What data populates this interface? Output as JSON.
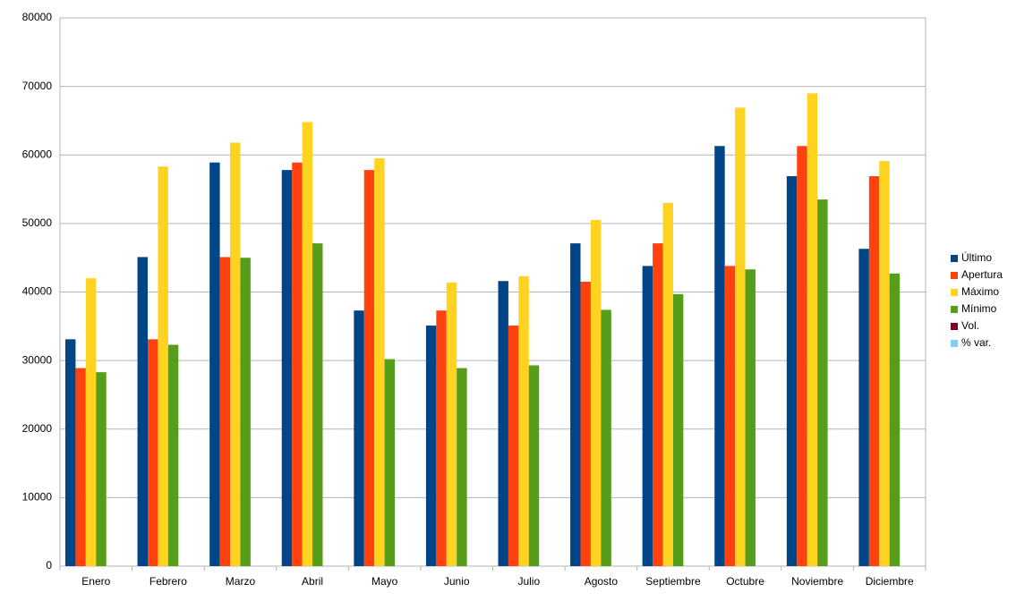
{
  "chart_data": {
    "type": "bar",
    "categories": [
      "Enero",
      "Febrero",
      "Marzo",
      "Abril",
      "Mayo",
      "Junio",
      "Julio",
      "Agosto",
      "Septiembre",
      "Octubre",
      "Noviembre",
      "Diciembre"
    ],
    "series": [
      {
        "name": "Último",
        "color": "#004586",
        "values": [
          33100,
          45100,
          58900,
          57800,
          37300,
          35100,
          41600,
          47100,
          43800,
          61300,
          56900,
          46300
        ]
      },
      {
        "name": "Apertura",
        "color": "#ff420e",
        "values": [
          28900,
          33100,
          45100,
          58900,
          57800,
          37300,
          35100,
          41500,
          47100,
          43800,
          61300,
          56900
        ]
      },
      {
        "name": "Máximo",
        "color": "#ffd320",
        "values": [
          42000,
          58300,
          61800,
          64800,
          59500,
          41400,
          42300,
          50500,
          53000,
          66900,
          69000,
          59100
        ]
      },
      {
        "name": "Mínimo",
        "color": "#579d1c",
        "values": [
          28300,
          32300,
          45000,
          47100,
          30200,
          28900,
          29300,
          37400,
          39700,
          43300,
          53500,
          42700
        ]
      },
      {
        "name": "Vol.",
        "color": "#7e0021",
        "values": [
          null,
          null,
          null,
          null,
          null,
          null,
          null,
          null,
          null,
          null,
          null,
          null
        ]
      },
      {
        "name": "% var.",
        "color": "#83caff",
        "values": [
          null,
          null,
          null,
          null,
          null,
          null,
          null,
          null,
          null,
          null,
          null,
          null
        ]
      }
    ],
    "ylim": [
      0,
      80000
    ],
    "yticks": [
      0,
      10000,
      20000,
      30000,
      40000,
      50000,
      60000,
      70000,
      80000
    ],
    "grid": true,
    "legend": "right"
  }
}
